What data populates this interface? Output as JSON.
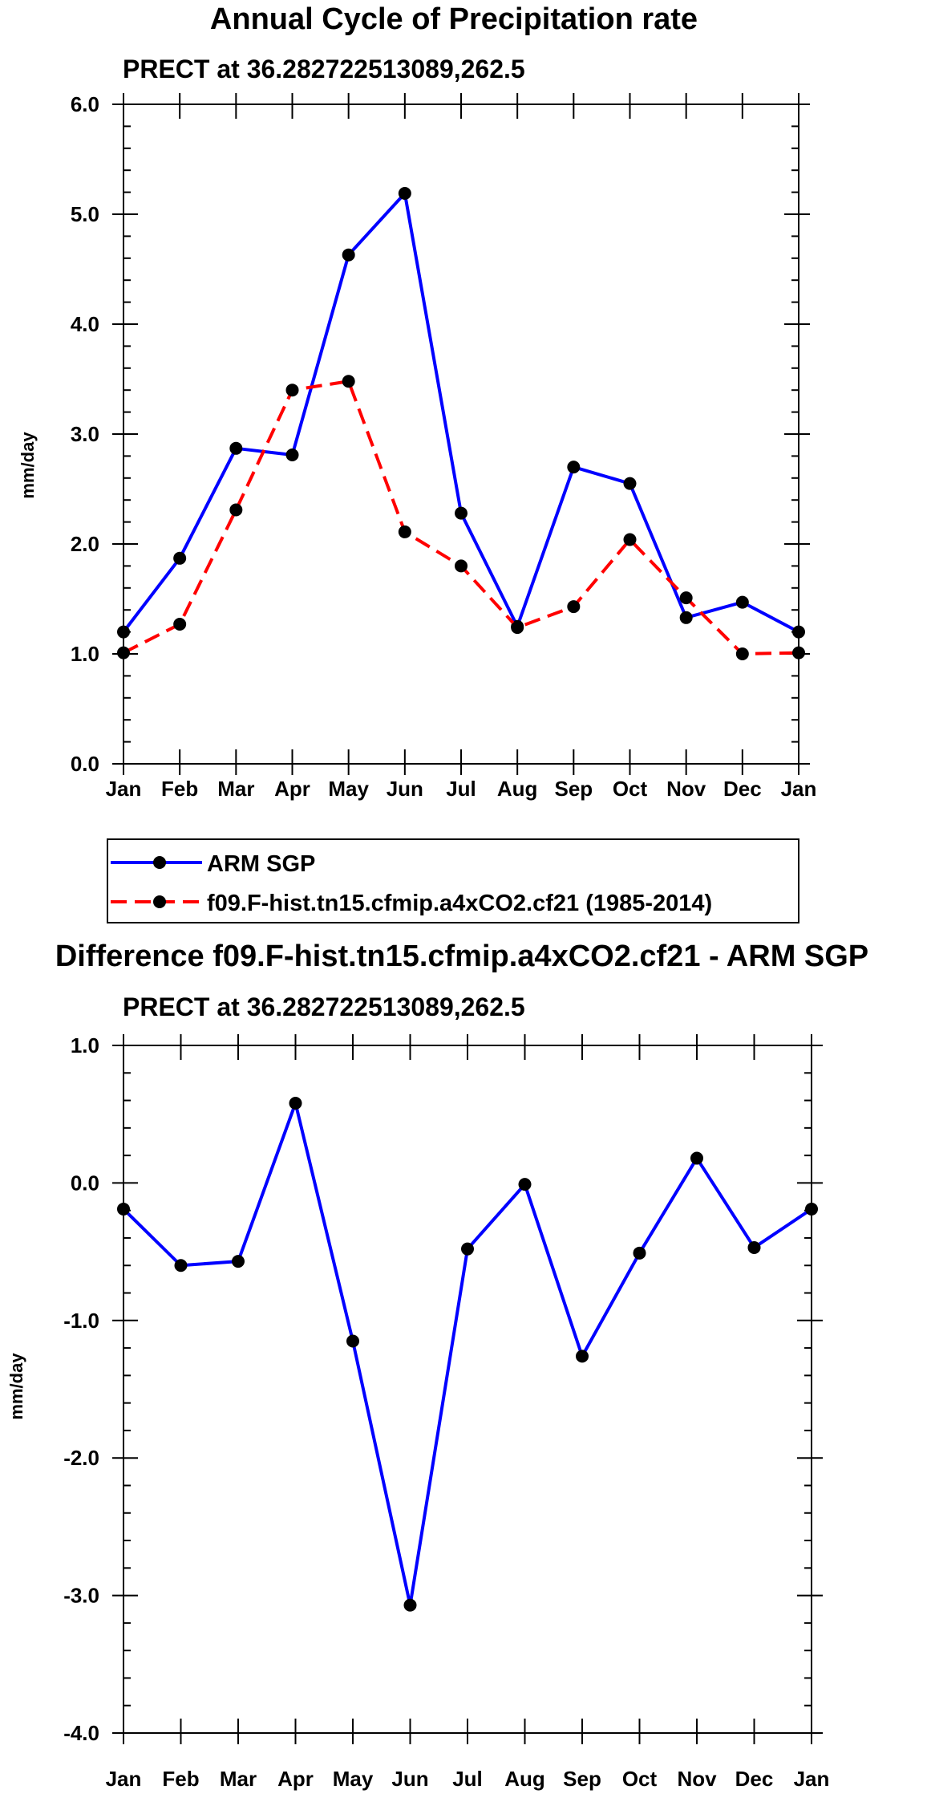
{
  "chart_data": [
    {
      "type": "line",
      "title": "Annual Cycle of Precipitation rate",
      "subtitle": "PRECT at 36.282722513089,262.5",
      "xlabel": "",
      "ylabel": "mm/day",
      "categories": [
        "Jan",
        "Feb",
        "Mar",
        "Apr",
        "May",
        "Jun",
        "Jul",
        "Aug",
        "Sep",
        "Oct",
        "Nov",
        "Dec",
        "Jan"
      ],
      "ylim": [
        0.0,
        6.0
      ],
      "yticks": [
        0.0,
        1.0,
        2.0,
        3.0,
        4.0,
        5.0,
        6.0
      ],
      "ytick_labels": [
        "0.0",
        "1.0",
        "2.0",
        "3.0",
        "4.0",
        "5.0",
        "6.0"
      ],
      "series": [
        {
          "name": "ARM SGP",
          "color": "#0000ff",
          "dash": "solid",
          "values": [
            1.2,
            1.87,
            2.87,
            2.81,
            4.63,
            5.19,
            2.28,
            1.25,
            2.7,
            2.55,
            1.33,
            1.47,
            1.2
          ]
        },
        {
          "name": "f09.F-hist.tn15.cfmip.a4xCO2.cf21 (1985-2014)",
          "color": "#ff0000",
          "dash": "dashed",
          "values": [
            1.01,
            1.27,
            2.31,
            3.4,
            3.48,
            2.11,
            1.8,
            1.24,
            1.43,
            2.04,
            1.51,
            1.0,
            1.01
          ]
        }
      ],
      "legend": "bottom"
    },
    {
      "type": "line",
      "title": "Difference f09.F-hist.tn15.cfmip.a4xCO2.cf21 - ARM SGP",
      "subtitle": "PRECT at 36.282722513089,262.5",
      "xlabel": "",
      "ylabel": "mm/day",
      "categories": [
        "Jan",
        "Feb",
        "Mar",
        "Apr",
        "May",
        "Jun",
        "Jul",
        "Aug",
        "Sep",
        "Oct",
        "Nov",
        "Dec",
        "Jan"
      ],
      "ylim": [
        -4.0,
        1.0
      ],
      "yticks": [
        -4.0,
        -3.0,
        -2.0,
        -1.0,
        0.0,
        1.0
      ],
      "ytick_labels": [
        "-4.0",
        "-3.0",
        "-2.0",
        "-1.0",
        "0.0",
        "1.0"
      ],
      "series": [
        {
          "name": "Difference",
          "color": "#0000ff",
          "dash": "solid",
          "values": [
            -0.19,
            -0.6,
            -0.57,
            0.58,
            -1.15,
            -3.07,
            -0.48,
            -0.01,
            -1.26,
            -0.51,
            0.18,
            -0.47,
            -0.19
          ]
        }
      ]
    }
  ]
}
